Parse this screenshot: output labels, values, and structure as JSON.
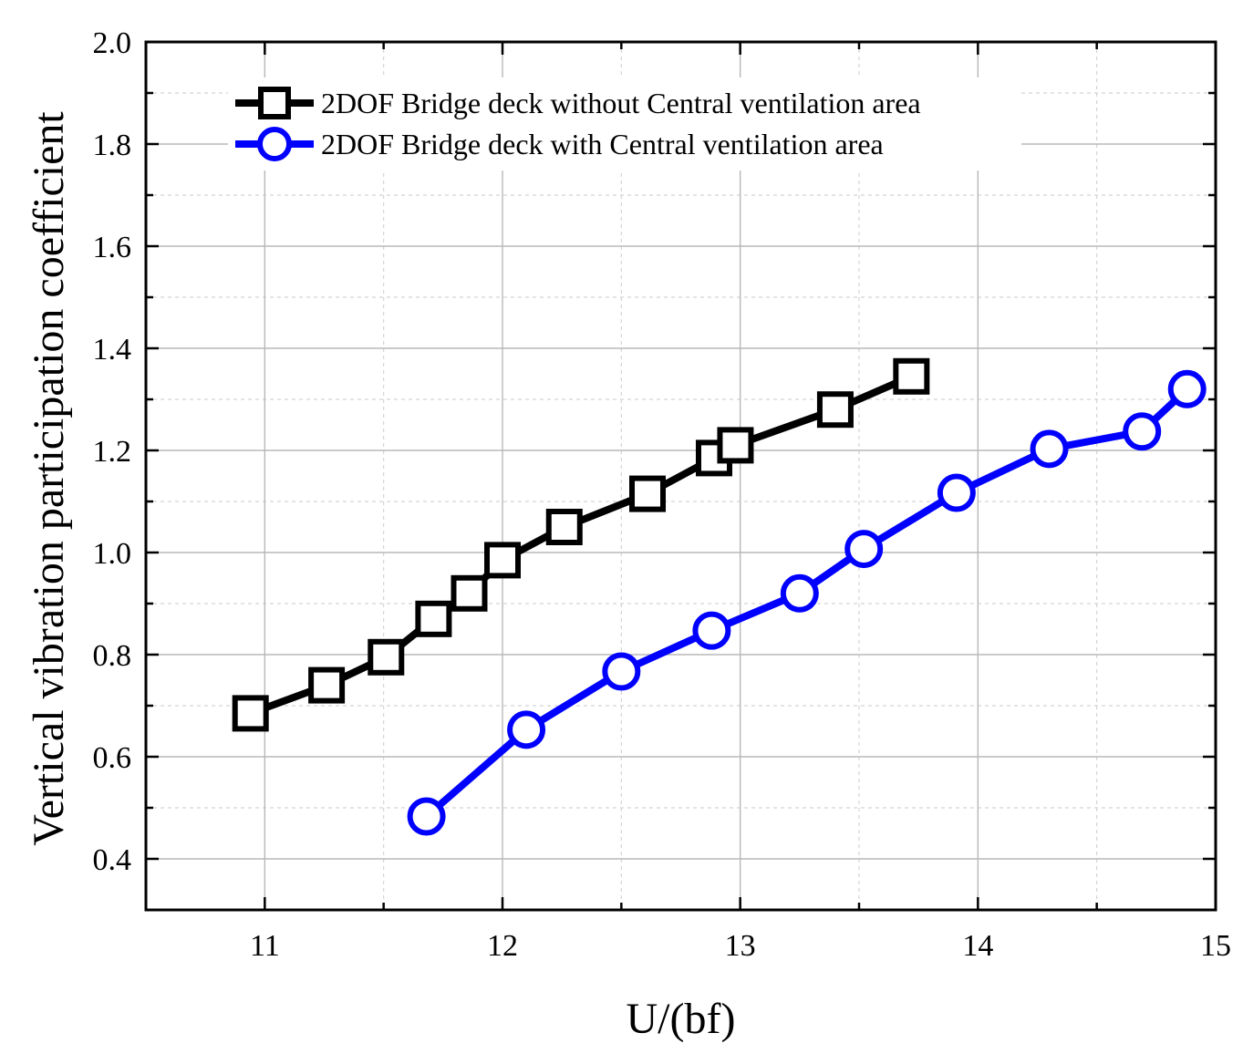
{
  "chart_data": {
    "type": "line",
    "title": "",
    "xlabel": "U/(bf)",
    "ylabel": "Vertical vibration participation coefficient",
    "xlim": [
      10.5,
      15
    ],
    "ylim": [
      0.3,
      2.0
    ],
    "xticks": [
      11,
      12,
      13,
      14,
      15
    ],
    "xtick_labels": [
      "11",
      "12",
      "13",
      "14",
      "15"
    ],
    "yticks": [
      0.4,
      0.6,
      0.8,
      1.0,
      1.2,
      1.4,
      1.6,
      1.8,
      2.0
    ],
    "ytick_labels": [
      "0.4",
      "0.6",
      "0.8",
      "1.0",
      "1.2",
      "1.4",
      "1.6",
      "1.8",
      "2.0"
    ],
    "grid": true,
    "legend_position": "top-left",
    "series": [
      {
        "name": "2DOF Bridge deck without Central ventilation area",
        "marker": "square",
        "color": "#000000",
        "x": [
          10.94,
          11.26,
          11.51,
          11.71,
          11.86,
          12.0,
          12.26,
          12.61,
          12.89,
          12.98,
          13.4,
          13.72
        ],
        "y": [
          0.685,
          0.74,
          0.795,
          0.87,
          0.92,
          0.985,
          1.05,
          1.115,
          1.185,
          1.21,
          1.28,
          1.345
        ]
      },
      {
        "name": "2DOF Bridge deck with Central ventilation area",
        "marker": "circle",
        "color": "#0000ff",
        "x": [
          11.68,
          12.1,
          12.5,
          12.88,
          13.25,
          13.52,
          13.91,
          14.3,
          14.69,
          14.88
        ],
        "y": [
          0.483,
          0.653,
          0.767,
          0.847,
          0.92,
          1.007,
          1.117,
          1.203,
          1.237,
          1.32
        ]
      }
    ]
  }
}
